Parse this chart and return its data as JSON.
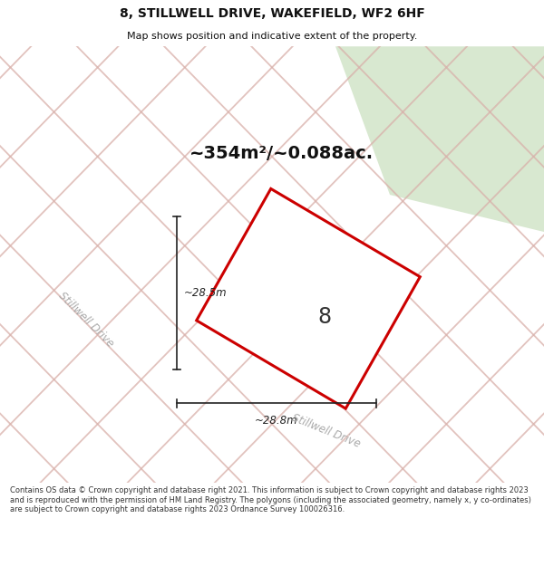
{
  "title": "8, STILLWELL DRIVE, WAKEFIELD, WF2 6HF",
  "subtitle": "Map shows position and indicative extent of the property.",
  "area_text": "~354m²/~0.088ac.",
  "dim_width": "~28.8m",
  "dim_height": "~28.5m",
  "label_number": "8",
  "footer": "Contains OS data © Crown copyright and database right 2021. This information is subject to Crown copyright and database rights 2023 and is reproduced with the permission of HM Land Registry. The polygons (including the associated geometry, namely x, y co-ordinates) are subject to Crown copyright and database rights 2023 Ordnance Survey 100026316.",
  "map_bg": "#ebebeb",
  "map_bg_right": "#dde8dd",
  "tile_fill": "#e0e0e0",
  "tile_edge_pink": "#e8b0a8",
  "tile_edge_gray": "#c8c8c8",
  "plot_fill": "#ffffff",
  "plot_edge": "#cc0000",
  "street_label_color": "#aaaaaa",
  "footer_color": "#333333",
  "title_color": "#111111",
  "dim_color": "#222222"
}
